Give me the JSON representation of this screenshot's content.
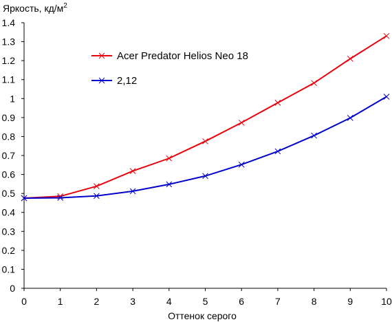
{
  "chart_data": {
    "type": "line",
    "ylabel": "Яркость, кд/м",
    "ylabel_superscript": "2",
    "xlabel": "Оттенок серого",
    "xlim": [
      0,
      10
    ],
    "ylim": [
      0,
      1.4
    ],
    "x_ticks": [
      "0",
      "1",
      "2",
      "3",
      "4",
      "5",
      "6",
      "7",
      "8",
      "9",
      "10"
    ],
    "y_ticks": [
      "0",
      "0.1",
      "0.2",
      "0.3",
      "0.4",
      "0.5",
      "0.6",
      "0.7",
      "0.8",
      "0.9",
      "1",
      "1.1",
      "1.2",
      "1.3",
      "1.4"
    ],
    "grid": false,
    "legend_position": "top-left",
    "x": [
      0,
      1,
      2,
      3,
      4,
      5,
      6,
      7,
      8,
      9,
      10
    ],
    "series": [
      {
        "name": "Acer Predator Helios Neo 18",
        "color": "#e8000b",
        "marker": "x",
        "values": [
          0.475,
          0.485,
          0.538,
          0.618,
          0.685,
          0.775,
          0.873,
          0.978,
          1.082,
          1.21,
          1.33
        ]
      },
      {
        "name": "2,12",
        "color": "#0000cc",
        "marker": "x",
        "values": [
          0.475,
          0.477,
          0.487,
          0.512,
          0.548,
          0.592,
          0.652,
          0.722,
          0.805,
          0.898,
          1.01
        ]
      }
    ]
  }
}
